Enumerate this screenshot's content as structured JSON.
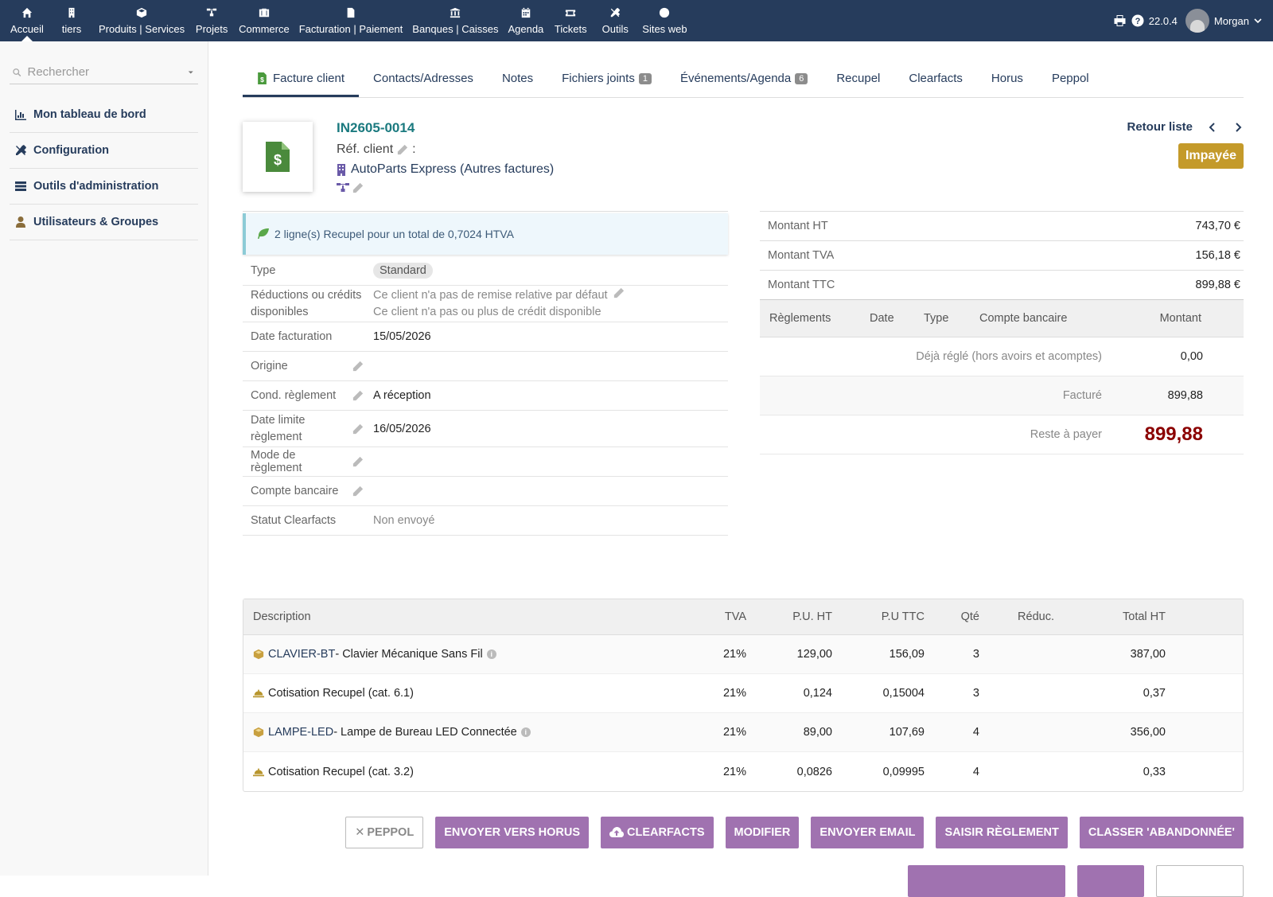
{
  "topnav": [
    {
      "label": "Accueil",
      "icon": "home-icon",
      "active": true
    },
    {
      "label": "tiers",
      "icon": "building-icon"
    },
    {
      "label": "Produits | Services",
      "icon": "cube-icon"
    },
    {
      "label": "Projets",
      "icon": "sitemap-icon"
    },
    {
      "label": "Commerce",
      "icon": "briefcase-icon"
    },
    {
      "label": "Facturation | Paiement",
      "icon": "invoice-icon"
    },
    {
      "label": "Banques | Caisses",
      "icon": "bank-icon"
    },
    {
      "label": "Agenda",
      "icon": "calendar-icon"
    },
    {
      "label": "Tickets",
      "icon": "ticket-icon"
    },
    {
      "label": "Outils",
      "icon": "tools-icon"
    },
    {
      "label": "Sites web",
      "icon": "globe-icon"
    }
  ],
  "topright": {
    "version": "22.0.4",
    "user": "Morgan"
  },
  "leftmenu": {
    "search_placeholder": "Rechercher",
    "items": [
      {
        "label": "Mon tableau de bord",
        "icon": "chart-icon"
      },
      {
        "label": "Configuration",
        "icon": "tools-icon"
      },
      {
        "label": "Outils d'administration",
        "icon": "server-icon"
      },
      {
        "label": "Utilisateurs & Groupes",
        "icon": "user-icon"
      }
    ]
  },
  "tabs": [
    {
      "label": "Facture client",
      "active": true
    },
    {
      "label": "Contacts/Adresses"
    },
    {
      "label": "Notes"
    },
    {
      "label": "Fichiers joints",
      "badge": "1"
    },
    {
      "label": "Événements/Agenda",
      "badge": "6"
    },
    {
      "label": "Recupel"
    },
    {
      "label": "Clearfacts"
    },
    {
      "label": "Horus"
    },
    {
      "label": "Peppol"
    }
  ],
  "header": {
    "ref": "IN2605-0014",
    "ref_client_label": "Réf. client",
    "ref_client_sep": ":",
    "thirdparty": "AutoParts Express",
    "other_invoices": "Autres factures",
    "back_list": "Retour liste",
    "status": "Impayée",
    "status_color": "#c49a2a"
  },
  "recupel_info": "2 ligne(s) Recupel pour un total de 0,7024 HTVA",
  "fields": {
    "type_label": "Type",
    "type_value": "Standard",
    "reductions_label": "Réductions ou crédits disponibles",
    "reductions_line1": "Ce client n'a pas de remise relative par défaut",
    "reductions_line2": "Ce client n'a pas ou plus de crédit disponible",
    "date_label": "Date facturation",
    "date_value": "15/05/2026",
    "origine_label": "Origine",
    "origine_value": "",
    "cond_label": "Cond. règlement",
    "cond_value": "A réception",
    "limit_label": "Date limite règlement",
    "limit_value": "16/05/2026",
    "mode_label": "Mode de règlement",
    "mode_value": "",
    "bank_label": "Compte bancaire",
    "bank_value": "",
    "clearfacts_label": "Statut Clearfacts",
    "clearfacts_value": "Non envoyé"
  },
  "amounts": {
    "ht_label": "Montant HT",
    "ht_value": "743,70 €",
    "tva_label": "Montant TVA",
    "tva_value": "156,18 €",
    "ttc_label": "Montant TTC",
    "ttc_value": "899,88 €"
  },
  "payments": {
    "headers": [
      "Règlements",
      "Date",
      "Type",
      "Compte bancaire",
      "Montant"
    ],
    "deja_label": "Déjà réglé (hors avoirs et acomptes)",
    "deja_value": "0,00",
    "facture_label": "Facturé",
    "facture_value": "899,88",
    "reste_label": "Reste à payer",
    "reste_value": "899,88",
    "reste_color": "#8b0000"
  },
  "lines": {
    "headers": {
      "desc": "Description",
      "tva": "TVA",
      "puht": "P.U. HT",
      "puttc": "P.U TTC",
      "qte": "Qté",
      "reduc": "Réduc.",
      "total": "Total HT"
    },
    "rows": [
      {
        "ref": "CLAVIER-BT",
        "label": " - Clavier Mécanique Sans Fil",
        "tva": "21%",
        "puht": "129,00",
        "puttc": "156,09",
        "qte": "3",
        "total": "387,00"
      },
      {
        "ref": "",
        "label": "Cotisation Recupel (cat. 6.1)",
        "tva": "21%",
        "puht": "0,124",
        "puttc": "0,15004",
        "qte": "3",
        "total": "0,37"
      },
      {
        "ref": "LAMPE-LED",
        "label": " - Lampe de Bureau LED Connectée",
        "tva": "21%",
        "puht": "89,00",
        "puttc": "107,69",
        "qte": "4",
        "total": "356,00"
      },
      {
        "ref": "",
        "label": "Cotisation Recupel (cat. 3.2)",
        "tva": "21%",
        "puht": "0,0826",
        "puttc": "0,09995",
        "qte": "4",
        "total": "0,33"
      }
    ]
  },
  "buttons": [
    "PEPPOL",
    "ENVOYER VERS HORUS",
    "CLEARFACTS",
    "MODIFIER",
    "ENVOYER EMAIL",
    "SAISIR RÈGLEMENT",
    "CLASSER 'ABANDONNÉE'"
  ],
  "colors": {
    "topbar": "#263c5c",
    "button": "#a072b0",
    "ref": "#1b7a7f"
  }
}
